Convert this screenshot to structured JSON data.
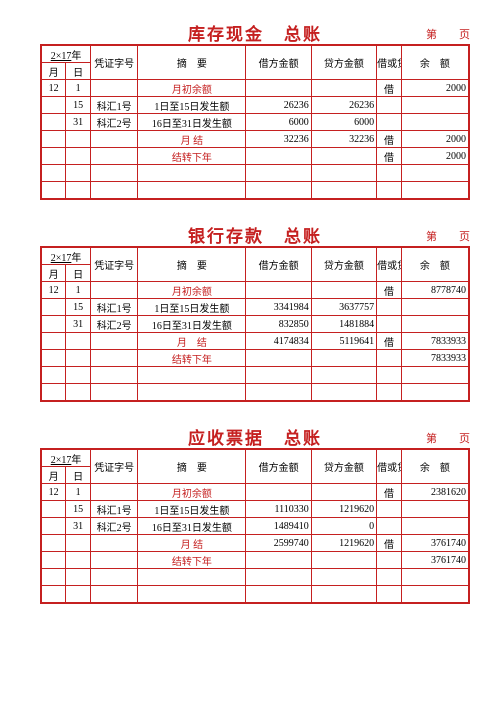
{
  "colors": {
    "brand_red": "#c52020",
    "text_black": "#000000",
    "background": "#ffffff"
  },
  "header_labels": {
    "year_prefix": "2×17",
    "year_suffix": "年",
    "month": "月",
    "day": "日",
    "voucher_no": "凭证字号",
    "summary": "摘　要",
    "debit": "借方金额",
    "credit": "贷方金额",
    "dc": "借或贷",
    "balance": "余　额",
    "page_left": "第",
    "page_right": "页"
  },
  "row_labels": {
    "opening": "月初余额",
    "kh1": "科汇1号",
    "kh2": "科汇2号",
    "p1": "1日至15日发生额",
    "p2": "16日至31日发生额",
    "month_close": "月 结",
    "month_close2": "月　结",
    "carry": "结转下年",
    "dr_flag": "借"
  },
  "ledgers": [
    {
      "title_a": "库存现金",
      "title_b": "总账",
      "rows": [
        {
          "month": "12",
          "day": "1",
          "vno": "",
          "desc_key": "opening",
          "desc_red": true,
          "dr": "",
          "cr": "",
          "flag": "dr_flag",
          "bal": "2000"
        },
        {
          "month": "",
          "day": "15",
          "vno_key": "kh1",
          "desc_key": "p1",
          "dr": "26236",
          "cr": "26236",
          "flag": "",
          "bal": ""
        },
        {
          "month": "",
          "day": "31",
          "vno_key": "kh2",
          "desc_key": "p2",
          "dr": "6000",
          "cr": "6000",
          "flag": "",
          "bal": ""
        },
        {
          "month": "",
          "day": "",
          "vno": "",
          "desc_key": "month_close",
          "desc_red": true,
          "dr": "32236",
          "cr": "32236",
          "flag": "dr_flag",
          "bal": "2000"
        },
        {
          "month": "",
          "day": "",
          "vno": "",
          "desc_key": "carry",
          "desc_red": true,
          "dr": "",
          "cr": "",
          "flag": "dr_flag",
          "bal": "2000"
        },
        {
          "blank": true
        },
        {
          "blank": true
        }
      ]
    },
    {
      "title_a": "银行存款",
      "title_b": "总账",
      "rows": [
        {
          "month": "12",
          "day": "1",
          "vno": "",
          "desc_key": "opening",
          "desc_red": true,
          "dr": "",
          "cr": "",
          "flag": "dr_flag",
          "bal": "8778740"
        },
        {
          "month": "",
          "day": "15",
          "vno_key": "kh1",
          "desc_key": "p1",
          "dr": "3341984",
          "cr": "3637757",
          "flag": "",
          "bal": ""
        },
        {
          "month": "",
          "day": "31",
          "vno_key": "kh2",
          "desc_key": "p2",
          "dr": "832850",
          "cr": "1481884",
          "flag": "",
          "bal": ""
        },
        {
          "month": "",
          "day": "",
          "vno": "",
          "desc_key": "month_close2",
          "desc_red": true,
          "dr": "4174834",
          "cr": "5119641",
          "flag": "dr_flag",
          "bal": "7833933"
        },
        {
          "month": "",
          "day": "",
          "vno": "",
          "desc_key": "carry",
          "desc_red": true,
          "dr": "",
          "cr": "",
          "flag": "",
          "bal": "7833933"
        },
        {
          "blank": true
        },
        {
          "blank": true
        }
      ]
    },
    {
      "title_a": "应收票据",
      "title_b": "总账",
      "rows": [
        {
          "month": "12",
          "day": "1",
          "vno": "",
          "desc_key": "opening",
          "desc_red": true,
          "dr": "",
          "cr": "",
          "flag": "dr_flag",
          "bal": "2381620"
        },
        {
          "month": "",
          "day": "15",
          "vno_key": "kh1",
          "desc_key": "p1",
          "dr": "1110330",
          "cr": "1219620",
          "flag": "",
          "bal": ""
        },
        {
          "month": "",
          "day": "31",
          "vno_key": "kh2",
          "desc_key": "p2",
          "dr": "1489410",
          "cr": "0",
          "flag": "",
          "bal": ""
        },
        {
          "month": "",
          "day": "",
          "vno": "",
          "desc_key": "month_close",
          "desc_red": true,
          "dr": "2599740",
          "cr": "1219620",
          "flag": "dr_flag",
          "bal": "3761740"
        },
        {
          "month": "",
          "day": "",
          "vno": "",
          "desc_key": "carry",
          "desc_red": true,
          "dr": "",
          "cr": "",
          "flag": "",
          "bal": "3761740"
        },
        {
          "blank": true
        },
        {
          "blank": true
        }
      ]
    }
  ]
}
